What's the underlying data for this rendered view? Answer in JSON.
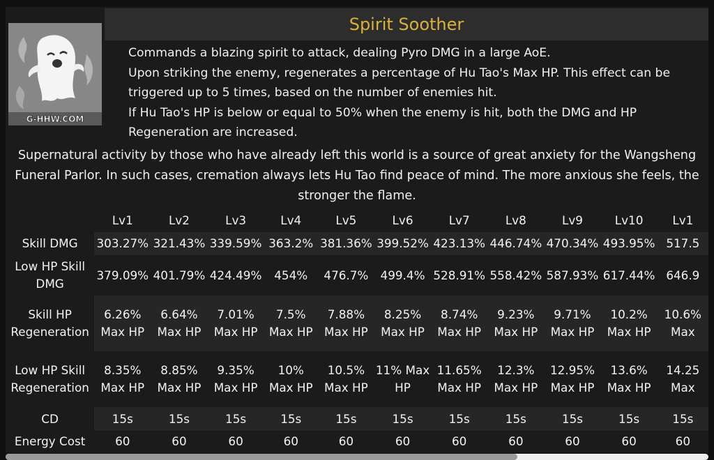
{
  "skill": {
    "title": "Spirit Soother",
    "icon_name": "ghost-spirit-icon",
    "icon_watermark": "G-HHW.COM",
    "description": [
      "Commands a blazing spirit to attack, dealing Pyro DMG in a large AoE.",
      "Upon striking the enemy, regenerates a percentage of Hu Tao's Max HP. This effect can be triggered up to 5 times, based on the number of enemies hit.",
      "If Hu Tao's HP is below or equal to 50% when the enemy is hit, both the DMG and HP Regeneration are increased."
    ],
    "lore": "Supernatural activity by those who have already left this world is a source of great anxiety for the Wangsheng Funeral Parlor. In such cases, cremation always lets Hu Tao find peace of mind. The more anxious she feels, the stronger the flame."
  },
  "table": {
    "levels": [
      "Lv1",
      "Lv2",
      "Lv3",
      "Lv4",
      "Lv5",
      "Lv6",
      "Lv7",
      "Lv8",
      "Lv9",
      "Lv10",
      "Lv1"
    ],
    "rows": [
      {
        "label": "Skill DMG",
        "values": [
          "303.27%",
          "321.43%",
          "339.59%",
          "363.2%",
          "381.36%",
          "399.52%",
          "423.13%",
          "446.74%",
          "470.34%",
          "493.95%",
          "517.5"
        ]
      },
      {
        "label": "Low HP Skill DMG",
        "values": [
          "379.09%",
          "401.79%",
          "424.49%",
          "454%",
          "476.7%",
          "499.4%",
          "528.91%",
          "558.42%",
          "587.93%",
          "617.44%",
          "646.9"
        ]
      },
      {
        "label": "Skill HP Regeneration",
        "values": [
          "6.26% Max HP",
          "6.64% Max HP",
          "7.01% Max HP",
          "7.5% Max HP",
          "7.88% Max HP",
          "8.25% Max HP",
          "8.74% Max HP",
          "9.23% Max HP",
          "9.71% Max HP",
          "10.2% Max HP",
          "10.6% Max"
        ]
      },
      {
        "label": "Low HP Skill Regeneration",
        "values": [
          "8.35% Max HP",
          "8.85% Max HP",
          "9.35% Max HP",
          "10% Max HP",
          "10.5% Max HP",
          "11% Max HP",
          "11.65% Max HP",
          "12.3% Max HP",
          "12.95% Max HP",
          "13.6% Max HP",
          "14.25 Max"
        ]
      },
      {
        "label": "CD",
        "values": [
          "15s",
          "15s",
          "15s",
          "15s",
          "15s",
          "15s",
          "15s",
          "15s",
          "15s",
          "15s",
          "15s"
        ]
      },
      {
        "label": "Energy Cost",
        "values": [
          "60",
          "60",
          "60",
          "60",
          "60",
          "60",
          "60",
          "60",
          "60",
          "60",
          "60"
        ]
      }
    ]
  },
  "scrollbar": {
    "position_fraction": 0.73
  },
  "colors": {
    "title_text": "#d8b23c",
    "panel_bg": "#1b1b1b",
    "row_alt_bg": "#262626"
  }
}
